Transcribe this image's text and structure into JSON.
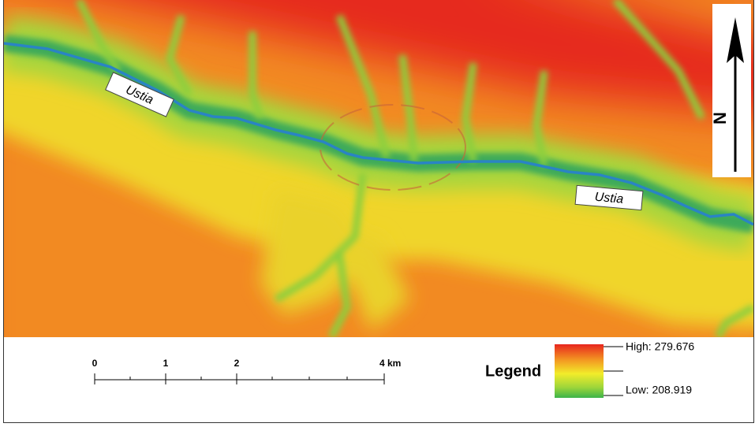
{
  "map": {
    "river_labels": [
      "Ustia",
      "Ustia"
    ],
    "north": "N",
    "scale_bar": {
      "labels": [
        "0",
        "1",
        "2",
        "4 km"
      ]
    },
    "legend": {
      "title": "Legend",
      "high": "High: 279.676",
      "low": "Low: 208.919"
    }
  }
}
